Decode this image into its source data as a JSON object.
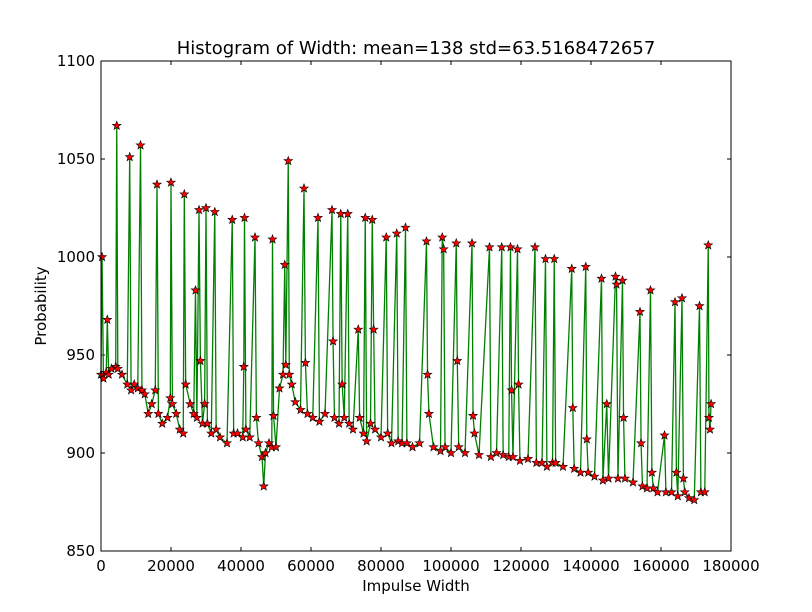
{
  "chart_data": {
    "type": "line",
    "title": "Histogram of Width: mean=138 std=63.5168472657",
    "xlabel": "Impulse Width",
    "ylabel": "Probability",
    "xlim": [
      0,
      180000
    ],
    "xticks": [
      0,
      20000,
      40000,
      60000,
      80000,
      100000,
      120000,
      140000,
      160000,
      180000
    ],
    "ylim": [
      850,
      1100
    ],
    "yticks": [
      850,
      900,
      950,
      1000,
      1050,
      1100
    ],
    "x": [
      0,
      300,
      700,
      1500,
      1800,
      2200,
      3000,
      4200,
      4500,
      4800,
      6000,
      7500,
      8200,
      8600,
      9500,
      10500,
      11300,
      11700,
      12500,
      13500,
      14500,
      15500,
      16000,
      16400,
      17500,
      19000,
      19800,
      20000,
      20400,
      21500,
      22500,
      23500,
      23800,
      24200,
      25500,
      26500,
      27000,
      27400,
      28000,
      28400,
      29000,
      29600,
      30000,
      30400,
      31500,
      32500,
      32900,
      34000,
      36000,
      37500,
      37900,
      39000,
      40500,
      40800,
      41000,
      41400,
      42500,
      44000,
      44400,
      45000,
      46000,
      46500,
      47000,
      48000,
      48800,
      49000,
      49300,
      50000,
      51000,
      52000,
      52500,
      52800,
      53500,
      53800,
      54500,
      55500,
      57000,
      58000,
      58400,
      59000,
      60500,
      62000,
      62400,
      64000,
      66000,
      66300,
      66700,
      68000,
      68500,
      68900,
      69500,
      70500,
      70900,
      72000,
      73500,
      73900,
      75000,
      75500,
      75900,
      77000,
      77500,
      77900,
      78300,
      80000,
      81500,
      81900,
      83000,
      84500,
      84900,
      86000,
      87000,
      87400,
      89000,
      91000,
      93000,
      93300,
      93700,
      95000,
      97000,
      97500,
      97900,
      98300,
      100000,
      101500,
      101800,
      102200,
      104000,
      106000,
      106300,
      106700,
      108000,
      111000,
      111400,
      113000,
      114500,
      114900,
      116500,
      117000,
      117300,
      117700,
      119000,
      119300,
      119700,
      122000,
      124000,
      124400,
      126000,
      127000,
      127400,
      129000,
      129500,
      129900,
      132000,
      134500,
      134800,
      135200,
      137000,
      138500,
      138800,
      139200,
      141000,
      143000,
      143400,
      144500,
      145000,
      147000,
      147300,
      147700,
      149000,
      149300,
      149700,
      152000,
      154000,
      154300,
      154700,
      156000,
      157000,
      157400,
      157800,
      159000,
      161000,
      161400,
      163000,
      164000,
      164400,
      164800,
      166000,
      166400,
      166800,
      168000,
      169500,
      171000,
      171400,
      172500,
      173500,
      173700,
      174000,
      174300
    ],
    "series": [
      {
        "color": "#008000",
        "marker_color": "#ff0000",
        "values": [
          940,
          1000,
          938,
          941,
          968,
          940,
          943,
          944,
          1067,
          943,
          940,
          935,
          1051,
          932,
          935,
          933,
          1057,
          932,
          930,
          920,
          925,
          932,
          1037,
          920,
          915,
          918,
          928,
          1038,
          925,
          920,
          912,
          910,
          1032,
          935,
          925,
          920,
          983,
          918,
          1024,
          947,
          915,
          925,
          1025,
          915,
          910,
          1023,
          912,
          908,
          905,
          1019,
          910,
          910,
          908,
          944,
          1020,
          912,
          908,
          1010,
          918,
          905,
          898,
          883,
          900,
          905,
          903,
          1009,
          919,
          903,
          933,
          940,
          996,
          945,
          1049,
          940,
          935,
          926,
          922,
          1035,
          946,
          920,
          918,
          1020,
          916,
          920,
          1024,
          957,
          918,
          915,
          1022,
          935,
          918,
          1022,
          915,
          912,
          963,
          918,
          910,
          1020,
          906,
          915,
          1019,
          963,
          912,
          908,
          1010,
          910,
          905,
          1012,
          906,
          905,
          1015,
          905,
          903,
          905,
          1008,
          940,
          920,
          903,
          901,
          1010,
          1004,
          903,
          900,
          1007,
          947,
          903,
          900,
          1007,
          919,
          910,
          899,
          1005,
          898,
          900,
          1005,
          899,
          898,
          1005,
          932,
          898,
          1004,
          935,
          896,
          897,
          1005,
          895,
          895,
          999,
          893,
          895,
          999,
          895,
          893,
          994,
          923,
          892,
          890,
          995,
          907,
          890,
          888,
          989,
          886,
          925,
          887,
          990,
          986,
          887,
          988,
          918,
          887,
          885,
          972,
          905,
          883,
          882,
          983,
          890,
          882,
          880,
          909,
          880,
          880,
          977,
          890,
          878,
          979,
          887,
          880,
          877,
          876,
          975,
          880,
          880,
          1006,
          918,
          912,
          925
        ]
      }
    ]
  }
}
